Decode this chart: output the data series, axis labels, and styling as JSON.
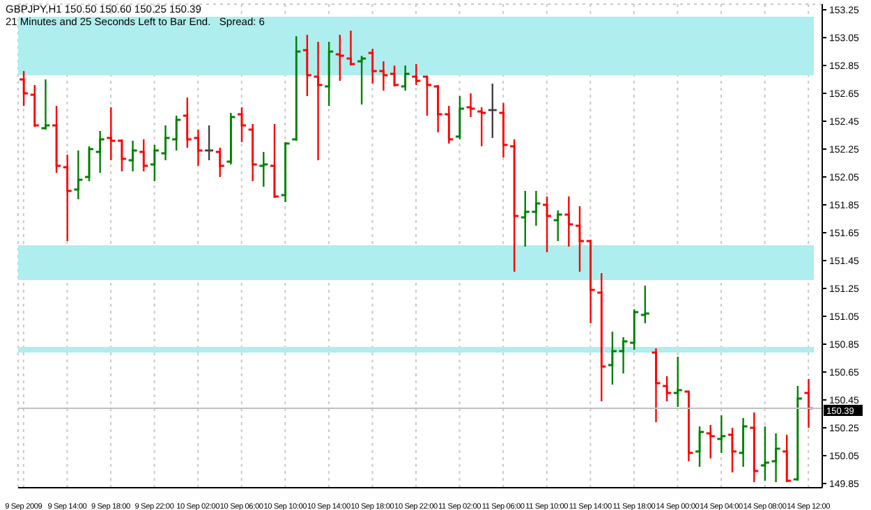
{
  "chart_data": {
    "type": "candlestick",
    "title": "GBPJPY,H1 150.50 150.60 150.25 150.39",
    "subtitle": "21 Minutes and 25 Seconds Left to Bar End.   Spread: 6",
    "categories": [
      "9 Sep 2009",
      null,
      null,
      null,
      "9 Sep 14:00",
      null,
      null,
      null,
      "9 Sep 18:00",
      null,
      null,
      null,
      "9 Sep 22:00",
      null,
      null,
      null,
      "10 Sep 02:00",
      null,
      null,
      null,
      "10 Sep 06:00",
      null,
      null,
      null,
      "10 Sep 10:00",
      null,
      null,
      null,
      "10 Sep 14:00",
      null,
      null,
      null,
      "10 Sep 18:00",
      null,
      null,
      null,
      "10 Sep 22:00",
      null,
      null,
      null,
      "11 Sep 02:00",
      null,
      null,
      null,
      "11 Sep 06:00",
      null,
      null,
      null,
      "11 Sep 10:00",
      null,
      null,
      null,
      "11 Sep 14:00",
      null,
      null,
      null,
      "11 Sep 18:00",
      null,
      null,
      null,
      "14 Sep 00:00",
      null,
      null,
      null,
      "14 Sep 04:00",
      null,
      null,
      null,
      "14 Sep 08:00",
      null,
      null,
      null,
      "14 Sep 12:00"
    ],
    "ohlc": [
      [
        152.75,
        152.81,
        152.56,
        152.65
      ],
      [
        152.64,
        152.71,
        152.41,
        152.42
      ],
      [
        152.4,
        152.75,
        152.39,
        152.42
      ],
      [
        152.42,
        152.56,
        152.08,
        152.13
      ],
      [
        152.12,
        152.21,
        151.59,
        151.95
      ],
      [
        151.96,
        152.24,
        151.89,
        152.03
      ],
      [
        152.05,
        152.27,
        152.02,
        152.25
      ],
      [
        152.23,
        152.38,
        152.08,
        152.32
      ],
      [
        152.33,
        152.55,
        152.17,
        152.31
      ],
      [
        152.31,
        152.32,
        152.09,
        152.18
      ],
      [
        152.17,
        152.31,
        152.09,
        152.24
      ],
      [
        152.23,
        152.32,
        152.09,
        152.13
      ],
      [
        152.14,
        152.28,
        152.02,
        152.24
      ],
      [
        152.22,
        152.42,
        152.17,
        152.33
      ],
      [
        152.32,
        152.49,
        152.24,
        152.46
      ],
      [
        152.49,
        152.62,
        152.26,
        152.32
      ],
      [
        152.33,
        152.39,
        152.13,
        152.24
      ],
      [
        152.24,
        152.42,
        152.17,
        152.24
      ],
      [
        152.23,
        152.26,
        152.05,
        152.13
      ],
      [
        152.16,
        152.51,
        152.14,
        152.48
      ],
      [
        152.5,
        152.55,
        152.3,
        152.42
      ],
      [
        152.39,
        152.43,
        152.02,
        152.14
      ],
      [
        152.13,
        152.23,
        151.98,
        152.14
      ],
      [
        152.13,
        152.43,
        151.9,
        151.91
      ],
      [
        151.92,
        152.3,
        151.87,
        152.29
      ],
      [
        152.32,
        153.06,
        152.31,
        152.95
      ],
      [
        152.96,
        153.07,
        152.63,
        152.78
      ],
      [
        152.77,
        153.02,
        152.17,
        152.71
      ],
      [
        152.7,
        153.02,
        152.56,
        152.95
      ],
      [
        152.93,
        153.07,
        152.74,
        152.92
      ],
      [
        152.9,
        153.1,
        152.85,
        152.86
      ],
      [
        152.88,
        152.92,
        152.57,
        152.9
      ],
      [
        152.94,
        152.97,
        152.72,
        152.81
      ],
      [
        152.81,
        152.88,
        152.67,
        152.78
      ],
      [
        152.79,
        152.85,
        152.7,
        152.71
      ],
      [
        152.7,
        152.85,
        152.67,
        152.79
      ],
      [
        152.77,
        152.86,
        152.71,
        152.74
      ],
      [
        152.77,
        152.77,
        152.49,
        152.71
      ],
      [
        152.7,
        152.71,
        152.37,
        152.5
      ],
      [
        152.5,
        152.56,
        152.29,
        152.32
      ],
      [
        152.34,
        152.63,
        152.32,
        152.54
      ],
      [
        152.55,
        152.65,
        152.48,
        152.54
      ],
      [
        152.52,
        152.55,
        152.27,
        152.51
      ],
      [
        152.53,
        152.72,
        152.33,
        152.53
      ],
      [
        152.51,
        152.58,
        152.19,
        152.28
      ],
      [
        152.27,
        152.32,
        151.37,
        151.77
      ],
      [
        151.76,
        151.95,
        151.55,
        151.8
      ],
      [
        151.8,
        151.95,
        151.7,
        151.86
      ],
      [
        151.85,
        151.91,
        151.51,
        151.77
      ],
      [
        151.74,
        151.81,
        151.59,
        151.78
      ],
      [
        151.78,
        151.91,
        151.55,
        151.71
      ],
      [
        151.7,
        151.84,
        151.37,
        151.59
      ],
      [
        151.59,
        151.6,
        151.0,
        151.24
      ],
      [
        151.22,
        151.36,
        150.44,
        150.69
      ],
      [
        150.7,
        150.94,
        150.56,
        150.8
      ],
      [
        150.8,
        150.9,
        150.64,
        150.87
      ],
      [
        150.86,
        151.1,
        150.81,
        151.08
      ],
      [
        151.06,
        151.27,
        151.0,
        151.07
      ],
      [
        150.79,
        150.82,
        150.29,
        150.57
      ],
      [
        150.55,
        150.62,
        150.44,
        150.5
      ],
      [
        150.5,
        150.76,
        150.4,
        150.52
      ],
      [
        150.51,
        150.51,
        150.01,
        150.07
      ],
      [
        150.08,
        150.26,
        149.97,
        150.22
      ],
      [
        150.21,
        150.27,
        150.03,
        150.19
      ],
      [
        150.17,
        150.34,
        150.07,
        150.19
      ],
      [
        150.2,
        150.25,
        149.93,
        150.08
      ],
      [
        150.07,
        150.32,
        149.97,
        150.26
      ],
      [
        150.25,
        150.36,
        149.86,
        149.94
      ],
      [
        149.98,
        150.26,
        149.87,
        150.0
      ],
      [
        150.01,
        150.21,
        149.86,
        150.1
      ],
      [
        150.08,
        150.2,
        149.86,
        149.87
      ],
      [
        149.88,
        150.55,
        149.87,
        150.46
      ],
      [
        150.5,
        150.6,
        150.25,
        150.39
      ]
    ],
    "colors": [
      "#ff0000",
      "#ff0000",
      "#008000",
      "#ff0000",
      "#ff0000",
      "#008000",
      "#008000",
      "#008000",
      "#ff0000",
      "#ff0000",
      "#008000",
      "#ff0000",
      "#008000",
      "#008000",
      "#008000",
      "#ff0000",
      "#ff0000",
      "#404040",
      "#ff0000",
      "#008000",
      "#ff0000",
      "#ff0000",
      "#008000",
      "#ff0000",
      "#008000",
      "#008000",
      "#ff0000",
      "#ff0000",
      "#008000",
      "#ff0000",
      "#ff0000",
      "#008000",
      "#ff0000",
      "#ff0000",
      "#ff0000",
      "#008000",
      "#ff0000",
      "#ff0000",
      "#ff0000",
      "#ff0000",
      "#008000",
      "#ff0000",
      "#ff0000",
      "#404040",
      "#ff0000",
      "#ff0000",
      "#008000",
      "#008000",
      "#ff0000",
      "#008000",
      "#ff0000",
      "#ff0000",
      "#ff0000",
      "#ff0000",
      "#008000",
      "#008000",
      "#008000",
      "#008000",
      "#ff0000",
      "#ff0000",
      "#008000",
      "#ff0000",
      "#008000",
      "#ff0000",
      "#008000",
      "#ff0000",
      "#008000",
      "#ff0000",
      "#008000",
      "#008000",
      "#ff0000",
      "#008000",
      "#ff0000"
    ],
    "ylim": [
      149.82,
      153.29
    ],
    "yticks": [
      153.25,
      153.05,
      152.85,
      152.65,
      152.45,
      152.25,
      152.05,
      151.85,
      151.65,
      151.45,
      151.25,
      151.05,
      150.85,
      150.65,
      150.45,
      150.25,
      150.05,
      149.85
    ],
    "grid": true,
    "bands": [
      {
        "axis": "y",
        "from": 152.78,
        "to": 153.2,
        "color": "#aeeeee"
      },
      {
        "axis": "y",
        "from": 151.31,
        "to": 151.56,
        "color": "#aeeeee"
      },
      {
        "axis": "y",
        "from": 150.79,
        "to": 150.83,
        "color": "#aeeeee"
      }
    ],
    "ref_lines": [
      {
        "axis": "y",
        "value": 150.39,
        "label": "150.39",
        "color": "#c0c0c0"
      }
    ]
  }
}
